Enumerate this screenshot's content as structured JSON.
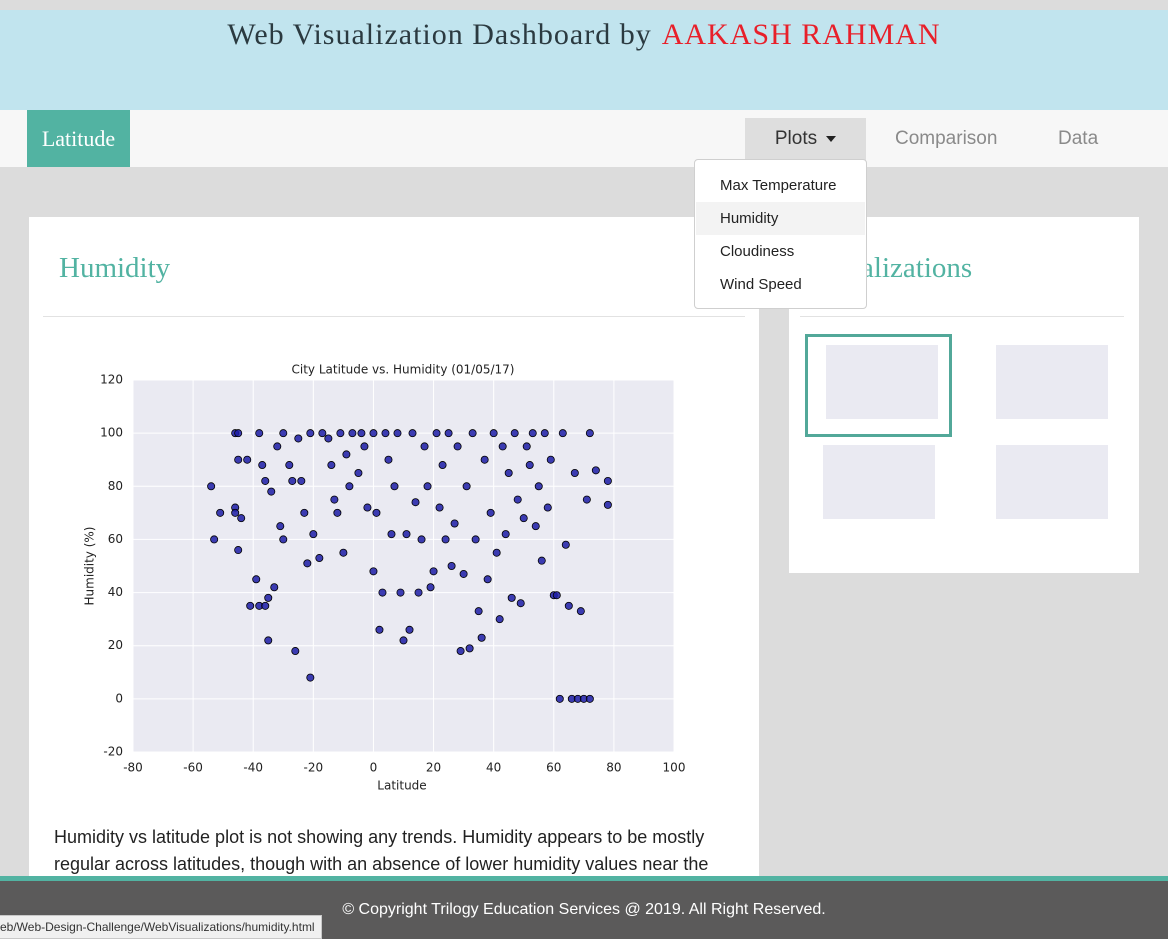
{
  "header": {
    "title": "Web Visualization Dashboard by",
    "author": "AAKASH RAHMAN"
  },
  "nav": {
    "brand": "Latitude",
    "plots": "Plots",
    "links": [
      "Comparison",
      "Data"
    ]
  },
  "dropdown": [
    "Max Temperature",
    "Humidity",
    "Cloudiness",
    "Wind Speed"
  ],
  "main": {
    "heading": "Humidity",
    "paragraph": "Humidity vs latitude plot is not showing any trends. Humidity appears to be mostly regular across latitudes, though with an absence of lower humidity values near the"
  },
  "side": {
    "heading": "Visualizations"
  },
  "footer": "© Copyright Trilogy Education Services @ 2019. All Right Reserved.",
  "status": "eb/Web-Design-Challenge/WebVisualizations/humidity.html",
  "chart_data": {
    "type": "scatter",
    "title": "City Latitude vs. Humidity (01/05/17)",
    "x_label": "Latitude",
    "y_label": "Humidity (%)",
    "x": [
      -54,
      -53,
      -51,
      -46,
      -45,
      -45,
      -46,
      -46,
      -45,
      -44,
      -42,
      -41,
      -39,
      -38,
      -38,
      -37,
      -36,
      -36,
      -35,
      -35,
      -34,
      -33,
      -32,
      -31,
      -30,
      -30,
      -28,
      -27,
      -26,
      -25,
      -24,
      -23,
      -22,
      -21,
      -21,
      -20,
      -18,
      -17,
      -15,
      -14,
      -13,
      -12,
      -11,
      -10,
      -9,
      -8,
      -7,
      -5,
      -4,
      -3,
      -2,
      0,
      0,
      1,
      2,
      3,
      4,
      5,
      6,
      7,
      8,
      9,
      10,
      11,
      12,
      13,
      14,
      15,
      16,
      17,
      18,
      19,
      20,
      21,
      22,
      23,
      24,
      25,
      26,
      27,
      28,
      29,
      30,
      31,
      32,
      33,
      34,
      35,
      36,
      37,
      38,
      39,
      40,
      41,
      42,
      43,
      44,
      45,
      46,
      47,
      48,
      49,
      50,
      51,
      52,
      53,
      54,
      55,
      56,
      57,
      58,
      59,
      60,
      61,
      62,
      63,
      64,
      65,
      66,
      67,
      68,
      69,
      70,
      71,
      72,
      72,
      74,
      78,
      78
    ],
    "y": [
      80,
      60,
      70,
      100,
      100,
      90,
      72,
      70,
      56,
      68,
      90,
      35,
      45,
      35,
      100,
      88,
      82,
      35,
      38,
      22,
      78,
      42,
      95,
      65,
      60,
      100,
      88,
      82,
      18,
      98,
      82,
      70,
      51,
      8,
      100,
      62,
      53,
      100,
      98,
      88,
      75,
      70,
      100,
      55,
      92,
      80,
      100,
      85,
      100,
      95,
      72,
      100,
      48,
      70,
      26,
      40,
      100,
      90,
      62,
      80,
      100,
      40,
      22,
      62,
      26,
      100,
      74,
      40,
      60,
      95,
      80,
      42,
      48,
      100,
      72,
      88,
      60,
      100,
      50,
      66,
      95,
      18,
      47,
      80,
      19,
      100,
      60,
      33,
      23,
      90,
      45,
      70,
      100,
      55,
      30,
      95,
      62,
      85,
      38,
      100,
      75,
      36,
      68,
      95,
      88,
      100,
      65,
      80,
      52,
      100,
      72,
      90,
      39,
      39,
      0,
      100,
      58,
      35,
      0,
      85,
      0,
      33,
      0,
      75,
      0,
      100,
      86,
      82,
      73
    ],
    "color": "#1c1ca6",
    "xlim": [
      -80,
      100
    ],
    "xticks": [
      -80,
      -60,
      -40,
      -20,
      0,
      20,
      40,
      60,
      80,
      100
    ],
    "ylim": [
      -20,
      120
    ],
    "yticks": [
      -20,
      0,
      20,
      40,
      60,
      80,
      100,
      120
    ],
    "grid": true
  }
}
